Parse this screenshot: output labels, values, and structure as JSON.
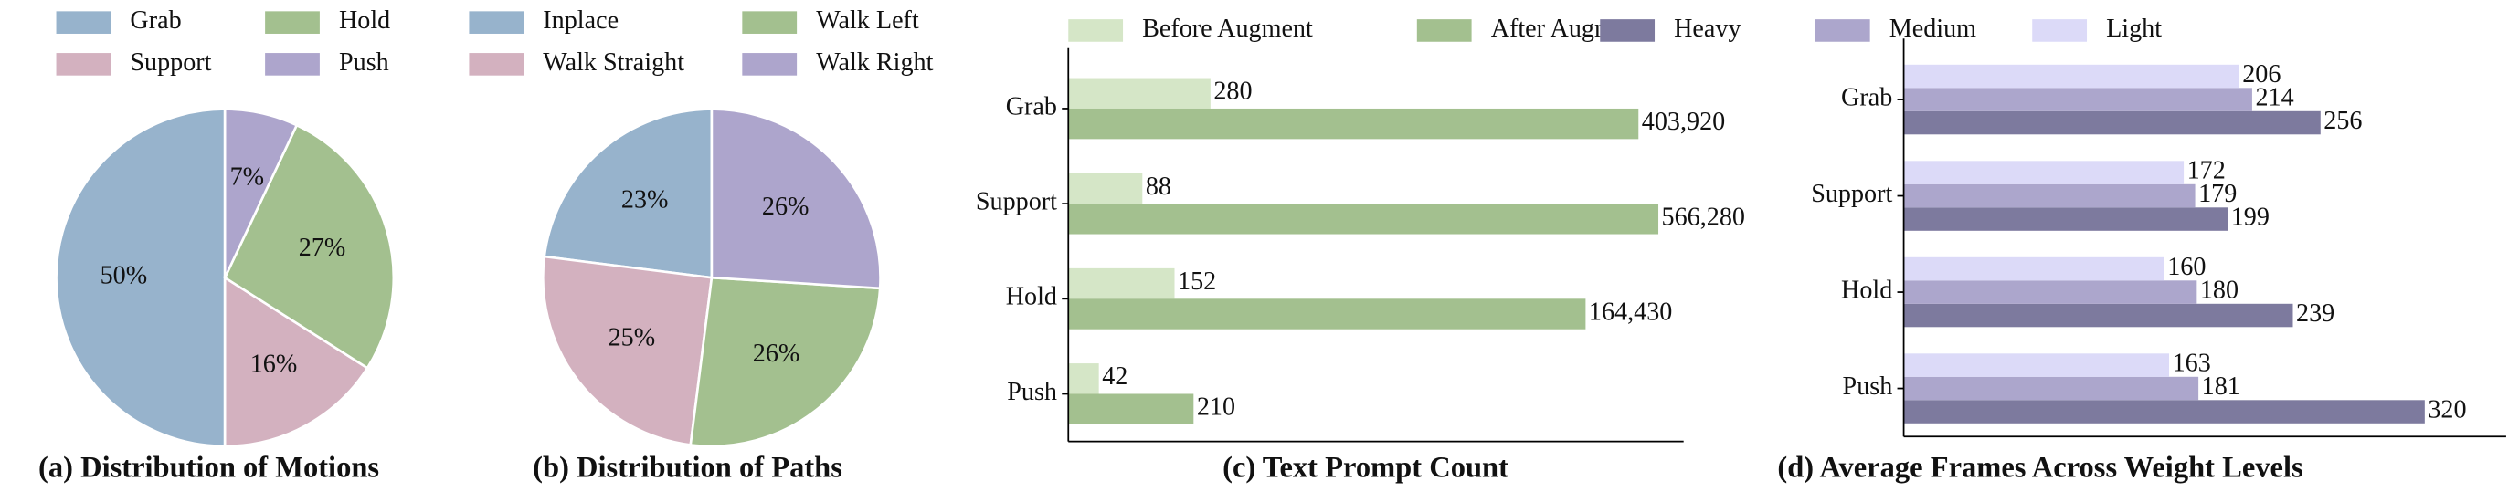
{
  "chart_data": [
    {
      "type": "pie",
      "title": "(a) Distribution of Motions",
      "categories": [
        "Grab",
        "Support",
        "Hold",
        "Push"
      ],
      "values": [
        50,
        16,
        27,
        7
      ],
      "value_labels": [
        "50%",
        "16%",
        "27%",
        "7%"
      ],
      "colors": [
        "#97b3cc",
        "#d3b1bf",
        "#a3c08f",
        "#ada5cc"
      ]
    },
    {
      "type": "pie",
      "title": "(b) Distribution of Paths",
      "categories": [
        "Inplace",
        "Walk Straight",
        "Walk Left",
        "Walk Right"
      ],
      "values": [
        23,
        25,
        26,
        26
      ],
      "value_labels": [
        "23%",
        "25%",
        "26%",
        "26%"
      ],
      "colors": [
        "#97b3cc",
        "#d3b1bf",
        "#a3c08f",
        "#ada5cc"
      ]
    },
    {
      "type": "barh",
      "title": "(c) Text Prompt Count",
      "xscale": "log",
      "xlim": [
        25,
        870000
      ],
      "categories": [
        "Grab",
        "Support",
        "Hold",
        "Push"
      ],
      "series": [
        {
          "name": "Before Augment",
          "color": "#d5e6c7",
          "values": [
            280,
            88,
            152,
            42
          ]
        },
        {
          "name": "After Augment",
          "color": "#a3c08f",
          "values": [
            403920,
            566280,
            164430,
            210
          ],
          "value_labels": [
            "403,920",
            "566,280",
            "164,430",
            "210"
          ]
        }
      ]
    },
    {
      "type": "barh",
      "title": "(d) Average Frames Across Weight Levels",
      "xscale": "linear",
      "xlim": [
        0,
        370
      ],
      "categories": [
        "Grab",
        "Support",
        "Hold",
        "Push"
      ],
      "series": [
        {
          "name": "Heavy",
          "color": "#7d7a9e",
          "values": [
            256,
            199,
            239,
            320
          ]
        },
        {
          "name": "Medium",
          "color": "#aca6cc",
          "values": [
            214,
            179,
            180,
            181
          ]
        },
        {
          "name": "Light",
          "color": "#dcdaf8",
          "values": [
            206,
            172,
            160,
            163
          ]
        }
      ]
    }
  ]
}
